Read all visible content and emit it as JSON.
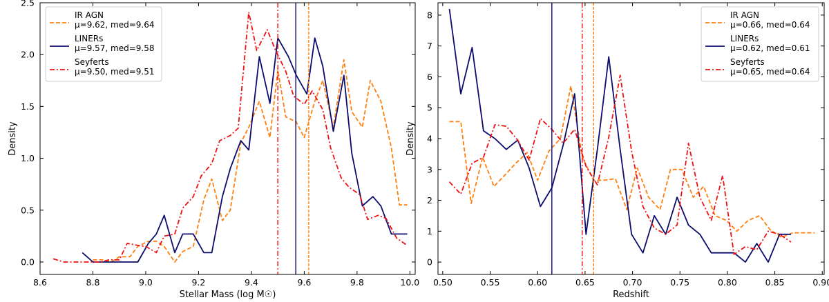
{
  "chart_data": [
    {
      "type": "line",
      "xlabel": "Stellar Mass (log M☉)",
      "ylabel": "Density",
      "xlim": [
        8.6,
        10.02
      ],
      "ylim": [
        -0.12,
        2.5
      ],
      "xticks": [
        8.6,
        8.8,
        9.0,
        9.2,
        9.4,
        9.6,
        9.8,
        10.0
      ],
      "xtick_labels": [
        "8.6",
        "8.8",
        "9.0",
        "9.2",
        "9.4",
        "9.6",
        "9.8",
        "10.0"
      ],
      "yticks": [
        0.0,
        0.5,
        1.0,
        1.5,
        2.0,
        2.5
      ],
      "ytick_labels": [
        "0.0",
        "0.5",
        "1.0",
        "1.5",
        "2.0",
        "2.5"
      ],
      "legend_position": "top-left",
      "series": [
        {
          "name": "IR AGN",
          "stat": "μ=9.62, med=9.64",
          "color": "#ff7f0e",
          "dash": "dashed",
          "mean": 9.617,
          "x": [
            8.8,
            8.84,
            8.87,
            8.9,
            8.94,
            8.97,
            9.01,
            9.04,
            9.07,
            9.11,
            9.14,
            9.18,
            9.22,
            9.25,
            9.29,
            9.32,
            9.36,
            9.39,
            9.43,
            9.47,
            9.5,
            9.53,
            9.57,
            9.6,
            9.64,
            9.67,
            9.71,
            9.75,
            9.78,
            9.82,
            9.85,
            9.89,
            9.93,
            9.96,
            9.99
          ],
          "y": [
            0.02,
            0.02,
            0.0,
            0.05,
            0.05,
            0.15,
            0.2,
            0.2,
            0.15,
            0.0,
            0.1,
            0.15,
            0.6,
            0.8,
            0.4,
            0.5,
            1.15,
            1.3,
            1.55,
            1.2,
            1.85,
            1.4,
            1.35,
            1.2,
            1.55,
            1.75,
            1.3,
            1.95,
            1.45,
            1.3,
            1.75,
            1.55,
            1.1,
            0.55,
            0.55
          ]
        },
        {
          "name": "LINERs",
          "stat": "μ=9.57, med=9.58",
          "color": "#0b0b6e",
          "dash": "solid",
          "mean": 9.568,
          "x": [
            8.76,
            8.8,
            8.83,
            8.87,
            8.9,
            8.94,
            8.97,
            9.01,
            9.04,
            9.07,
            9.11,
            9.14,
            9.18,
            9.22,
            9.25,
            9.29,
            9.32,
            9.36,
            9.39,
            9.43,
            9.47,
            9.5,
            9.54,
            9.57,
            9.61,
            9.64,
            9.67,
            9.71,
            9.75,
            9.78,
            9.82,
            9.86,
            9.89,
            9.93,
            9.96,
            9.99
          ],
          "y": [
            0.09,
            0.0,
            0.0,
            0.0,
            0.0,
            0.0,
            0.0,
            0.18,
            0.27,
            0.45,
            0.09,
            0.27,
            0.27,
            0.09,
            0.09,
            0.63,
            0.9,
            1.17,
            1.08,
            1.98,
            1.53,
            2.16,
            1.98,
            1.8,
            1.62,
            2.16,
            1.89,
            1.26,
            1.8,
            1.05,
            0.54,
            0.63,
            0.54,
            0.27,
            0.27,
            0.27
          ]
        },
        {
          "name": "Seyferts",
          "stat": "μ=9.50, med=9.51",
          "color": "#ee1111",
          "dash": "dashdot",
          "mean": 9.5,
          "x": [
            8.65,
            8.69,
            8.72,
            8.76,
            8.79,
            8.83,
            8.86,
            8.9,
            8.93,
            8.97,
            9.0,
            9.04,
            9.07,
            9.11,
            9.14,
            9.18,
            9.21,
            9.25,
            9.28,
            9.32,
            9.35,
            9.39,
            9.42,
            9.46,
            9.49,
            9.53,
            9.56,
            9.6,
            9.63,
            9.67,
            9.7,
            9.74,
            9.77,
            9.81,
            9.84,
            9.88,
            9.91,
            9.95,
            9.99
          ],
          "y": [
            0.03,
            0.0,
            0.0,
            0.0,
            0.0,
            0.0,
            0.02,
            0.02,
            0.18,
            0.16,
            0.15,
            0.09,
            0.25,
            0.27,
            0.52,
            0.63,
            0.83,
            0.95,
            1.17,
            1.22,
            1.29,
            2.41,
            2.04,
            2.24,
            2.05,
            1.84,
            1.6,
            1.52,
            1.65,
            1.47,
            1.1,
            0.81,
            0.72,
            0.65,
            0.41,
            0.45,
            0.42,
            0.23,
            0.16
          ]
        }
      ]
    },
    {
      "type": "line",
      "xlabel": "Redshift",
      "ylabel": "Density",
      "xlim": [
        0.495,
        0.902
      ],
      "ylim": [
        -0.4,
        8.4
      ],
      "xticks": [
        0.5,
        0.55,
        0.6,
        0.65,
        0.7,
        0.75,
        0.8,
        0.85,
        0.9
      ],
      "xtick_labels": [
        "0.50",
        "0.55",
        "0.60",
        "0.65",
        "0.70",
        "0.75",
        "0.80",
        "0.85",
        "0.90"
      ],
      "yticks": [
        0,
        1,
        2,
        3,
        4,
        5,
        6,
        7,
        8
      ],
      "ytick_labels": [
        "0",
        "1",
        "2",
        "3",
        "4",
        "5",
        "6",
        "7",
        "8"
      ],
      "legend_position": "top-right",
      "series": [
        {
          "name": "IR AGN",
          "stat": "μ=0.66, med=0.64",
          "color": "#ff7f0e",
          "dash": "dashed",
          "mean": 0.659,
          "x": [
            0.507,
            0.519,
            0.53,
            0.542,
            0.554,
            0.565,
            0.577,
            0.589,
            0.6,
            0.612,
            0.624,
            0.635,
            0.647,
            0.659,
            0.67,
            0.682,
            0.694,
            0.705,
            0.717,
            0.729,
            0.74,
            0.752,
            0.764,
            0.775,
            0.787,
            0.799,
            0.81,
            0.822,
            0.834,
            0.845,
            0.857,
            0.869,
            0.881,
            0.892
          ],
          "y": [
            4.55,
            4.55,
            1.9,
            3.4,
            2.45,
            2.8,
            3.2,
            3.55,
            2.65,
            3.6,
            4.0,
            5.7,
            3.4,
            2.65,
            2.65,
            2.7,
            1.7,
            3.05,
            2.1,
            1.7,
            3.0,
            3.0,
            2.1,
            2.45,
            1.5,
            1.35,
            1.0,
            1.35,
            1.5,
            1.05,
            0.8,
            0.95,
            0.95,
            0.95
          ]
        },
        {
          "name": "LINERs",
          "stat": "μ=0.62, med=0.61",
          "color": "#0b0b6e",
          "dash": "solid",
          "mean": 0.615,
          "x": [
            0.507,
            0.519,
            0.531,
            0.543,
            0.555,
            0.567,
            0.579,
            0.591,
            0.603,
            0.615,
            0.627,
            0.639,
            0.651,
            0.663,
            0.675,
            0.687,
            0.699,
            0.711,
            0.723,
            0.735,
            0.747,
            0.759,
            0.771,
            0.783,
            0.795,
            0.807,
            0.819,
            0.831,
            0.843,
            0.855,
            0.867
          ],
          "y": [
            8.2,
            5.45,
            6.95,
            4.25,
            4.0,
            3.65,
            3.95,
            3.05,
            1.8,
            2.4,
            3.8,
            5.45,
            0.9,
            3.65,
            6.65,
            3.65,
            0.9,
            0.3,
            1.5,
            0.9,
            2.1,
            1.2,
            0.9,
            0.3,
            0.3,
            0.3,
            0.0,
            0.6,
            0.0,
            0.9,
            0.9
          ]
        },
        {
          "name": "Seyferts",
          "stat": "μ=0.65, med=0.64",
          "color": "#ee1111",
          "dash": "dashdot",
          "mean": 0.647,
          "x": [
            0.507,
            0.519,
            0.531,
            0.543,
            0.555,
            0.567,
            0.579,
            0.591,
            0.603,
            0.615,
            0.627,
            0.639,
            0.651,
            0.663,
            0.675,
            0.687,
            0.699,
            0.711,
            0.723,
            0.735,
            0.747,
            0.759,
            0.771,
            0.783,
            0.795,
            0.807,
            0.819,
            0.831,
            0.843,
            0.855,
            0.867
          ],
          "y": [
            2.6,
            2.2,
            3.2,
            3.4,
            4.45,
            4.4,
            3.95,
            3.3,
            4.65,
            4.3,
            3.85,
            4.3,
            3.1,
            2.5,
            4.05,
            6.05,
            3.6,
            1.8,
            1.1,
            0.9,
            1.2,
            3.85,
            2.1,
            1.35,
            2.8,
            0.25,
            0.5,
            0.4,
            1.0,
            0.9,
            0.65
          ]
        }
      ]
    }
  ]
}
